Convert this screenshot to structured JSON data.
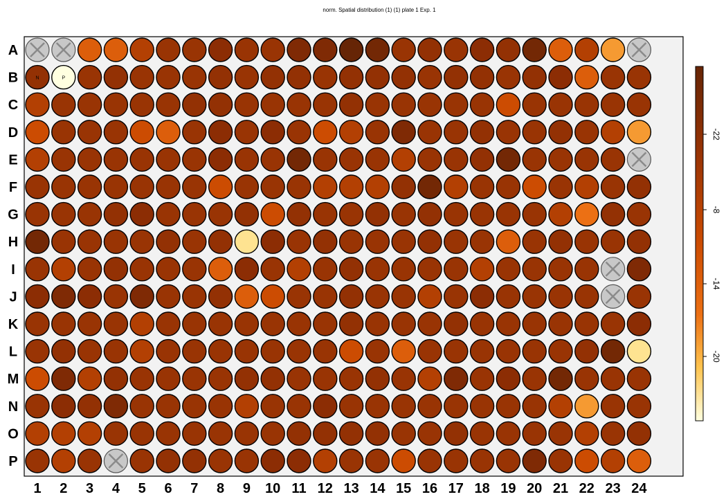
{
  "title": "norm. Spatial distribution (1) (1) plate 1 Exp. 1",
  "chart_data": {
    "type": "heatmap",
    "title": "norm. Spatial distribution (1) (1) plate 1 Exp. 1",
    "rows": [
      "A",
      "B",
      "C",
      "D",
      "E",
      "F",
      "G",
      "H",
      "I",
      "J",
      "K",
      "L",
      "M",
      "N",
      "O",
      "P"
    ],
    "columns": [
      "1",
      "2",
      "3",
      "4",
      "5",
      "6",
      "7",
      "8",
      "9",
      "10",
      "11",
      "12",
      "13",
      "14",
      "15",
      "16",
      "17",
      "18",
      "19",
      "20",
      "21",
      "22",
      "23",
      "24"
    ],
    "colorbar": {
      "ticks": [
        "-22",
        "-8",
        "-14",
        "-20"
      ]
    },
    "colors": {
      "background": "#f2f2f2",
      "excluded_well": "#c8c8c8",
      "negative_well": "#993404",
      "positive_well": "#ffffe0"
    },
    "excluded_wells": [
      "A1",
      "A2",
      "A24",
      "E24",
      "I23",
      "J23",
      "P4"
    ],
    "controls": [
      {
        "well": "B1",
        "label": "N"
      },
      {
        "well": "B2",
        "label": "P"
      }
    ],
    "values": [
      [
        null,
        null,
        4,
        4,
        2,
        1,
        1,
        -1,
        1,
        1,
        -2,
        -2,
        -4,
        -3,
        1,
        0,
        1,
        -1,
        0,
        -3,
        4,
        2,
        6,
        null
      ],
      [
        0,
        10,
        1,
        0,
        1,
        1,
        1,
        0,
        1,
        0,
        0,
        1,
        0,
        0,
        0,
        1,
        0,
        0,
        1,
        0,
        -1,
        4,
        1,
        1
      ],
      [
        2,
        1,
        1,
        1,
        1,
        1,
        0,
        0,
        1,
        1,
        1,
        1,
        0,
        1,
        1,
        1,
        1,
        1,
        3,
        1,
        1,
        1,
        1,
        1
      ],
      [
        3,
        1,
        1,
        1,
        3,
        4,
        1,
        -1,
        1,
        -1,
        1,
        3,
        2,
        1,
        -2,
        1,
        1,
        0,
        1,
        1,
        0,
        1,
        2,
        6
      ],
      [
        2,
        1,
        1,
        1,
        1,
        1,
        1,
        -1,
        1,
        1,
        -3,
        1,
        1,
        1,
        2,
        1,
        1,
        0,
        -3,
        1,
        1,
        1,
        1,
        null
      ],
      [
        1,
        1,
        1,
        1,
        1,
        1,
        1,
        3,
        1,
        1,
        1,
        2,
        2,
        2,
        0,
        -3,
        2,
        1,
        1,
        3,
        1,
        2,
        1,
        0
      ],
      [
        1,
        1,
        1,
        0,
        -1,
        1,
        1,
        1,
        0,
        3,
        0,
        1,
        1,
        0,
        1,
        0,
        1,
        1,
        1,
        1,
        2,
        5,
        0,
        1
      ],
      [
        -3,
        1,
        1,
        1,
        1,
        0,
        1,
        0,
        9,
        -1,
        1,
        0,
        1,
        1,
        1,
        0,
        1,
        1,
        4,
        1,
        0,
        1,
        1,
        0
      ],
      [
        1,
        2,
        1,
        0,
        1,
        1,
        1,
        4,
        -1,
        1,
        2,
        1,
        0,
        1,
        1,
        1,
        1,
        2,
        1,
        1,
        1,
        1,
        null,
        -2
      ],
      [
        -1,
        -2,
        -1,
        1,
        -2,
        1,
        1,
        0,
        4,
        3,
        1,
        1,
        0,
        1,
        1,
        2,
        1,
        -1,
        1,
        1,
        1,
        1,
        null,
        1
      ],
      [
        1,
        1,
        1,
        1,
        2,
        1,
        1,
        1,
        1,
        1,
        1,
        1,
        0,
        1,
        1,
        1,
        0,
        1,
        1,
        1,
        1,
        1,
        1,
        -1
      ],
      [
        1,
        0,
        1,
        1,
        2,
        1,
        1,
        1,
        1,
        1,
        1,
        1,
        3,
        1,
        4,
        1,
        1,
        1,
        1,
        1,
        1,
        0,
        -3,
        9
      ],
      [
        3,
        -2,
        2,
        0,
        1,
        1,
        1,
        1,
        0,
        0,
        1,
        1,
        1,
        0,
        1,
        2,
        -2,
        1,
        -1,
        1,
        -3,
        1,
        1,
        1
      ],
      [
        1,
        -1,
        0,
        -2,
        1,
        1,
        1,
        1,
        2,
        1,
        1,
        -1,
        1,
        1,
        1,
        1,
        1,
        1,
        1,
        1,
        2,
        6,
        1,
        1
      ],
      [
        2,
        2,
        2,
        1,
        1,
        1,
        1,
        1,
        1,
        1,
        0,
        0,
        0,
        0,
        1,
        1,
        0,
        1,
        1,
        1,
        1,
        2,
        1,
        0
      ],
      [
        1,
        2,
        1,
        null,
        1,
        0,
        0,
        1,
        1,
        -1,
        -1,
        2,
        1,
        1,
        3,
        1,
        1,
        1,
        1,
        -2,
        1,
        3,
        2,
        4
      ]
    ]
  }
}
